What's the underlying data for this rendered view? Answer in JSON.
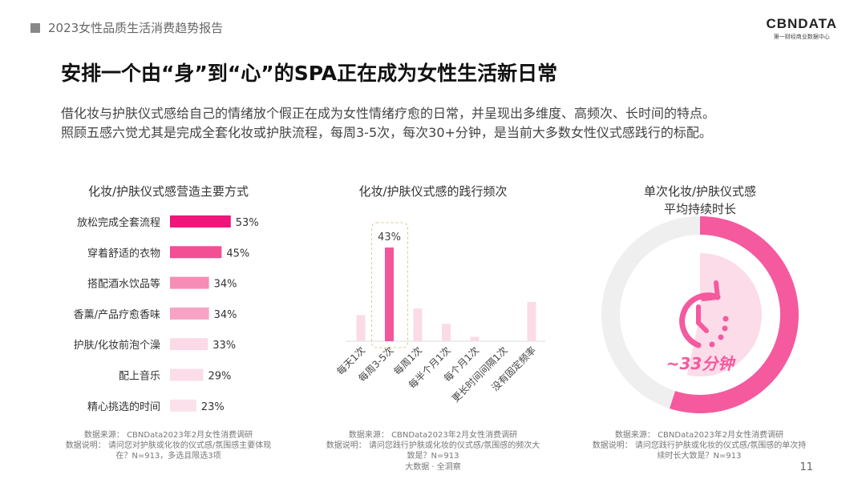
{
  "header": {
    "report": "2023女性品质生活消费趋势报告",
    "logo_main": "CBNDATA",
    "logo_sub": "第一财经商业数据中心"
  },
  "title": "安排一个由“身”到“心”的SPA正在成为女性生活新日常",
  "subtitle": [
    "借化妆与护肤仪式感给自己的情绪放个假正在成为女性情绪疗愈的日常，并呈现出多维度、高频次、长时间的特点。",
    "照顾五感六觉尤其是完成全套化妆或护肤流程，每周3-5次，每次30+分钟，是当前大多数女性仪式感践行的标配。"
  ],
  "chart_data": [
    {
      "type": "bar",
      "orientation": "horizontal",
      "title": "化妆/护肤仪式感营造主要方式",
      "categories": [
        "放松完成全套流程",
        "穿着舒适的衣物",
        "搭配酒水饮品等",
        "香薰/产品疗愈香味",
        "护肤/化妆前泡个澡",
        "配上音乐",
        "精心挑选的时间"
      ],
      "values": [
        53,
        45,
        34,
        34,
        33,
        29,
        23
      ],
      "unit": "%",
      "colors": [
        "#f0157a",
        "#f24f95",
        "#f58db6",
        "#f7a3c5",
        "#fbd9e6",
        "#fbdde9",
        "#fbe1eb"
      ]
    },
    {
      "type": "bar",
      "title": "化妆/护肤仪式感的践行频次",
      "categories": [
        "每天1次",
        "每周3-5次",
        "每周1次",
        "每半个月1次",
        "每个月1次",
        "更长时间间隔1次",
        "没有固定频率"
      ],
      "values": [
        12,
        43,
        15,
        8,
        2,
        0,
        18
      ],
      "labeled": {
        "每周3-5次": "43%"
      },
      "highlight": "每周3-5次",
      "colors": {
        "highlight": "#f4569c",
        "other": "#fbdbe7"
      }
    },
    {
      "type": "pie",
      "style": "donut",
      "title": [
        "单次化妆/护肤仪式感",
        "平均持续时长"
      ],
      "value_minutes": 33,
      "of_minutes": 60,
      "label": "~33分钟",
      "icon": "clock-refresh-icon",
      "colors": {
        "arc": "#f45a9d",
        "rest": "#efefef",
        "inner": "#fcdce9"
      }
    }
  ],
  "notes": [
    [
      "数据来源：  CBNData2023年2月女性消费调研",
      "数据说明：  请问您对护肤或化妆的仪式感/氛围感主要体现",
      "在？N=913，多选且限选3项"
    ],
    [
      "数据来源：  CBNData2023年2月女性消费调研",
      "数据说明：  请问您践行护肤或化妆的仪式感/氛围感的频次大",
      "致是？N=913"
    ],
    [
      "数据来源：  CBNData2023年2月女性消费调研",
      "数据说明：  请问您践行护肤或化妆的仪式感/氛围感的单次持",
      "续时长大致是？N=913"
    ]
  ],
  "footer": "大数据 · 全洞察",
  "page": "11"
}
